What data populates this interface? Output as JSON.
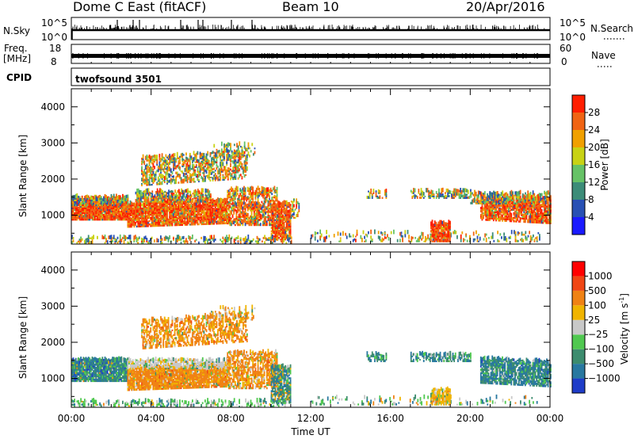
{
  "header": {
    "title": "Dome C East (fitACF)",
    "beam": "Beam 10",
    "date": "20/Apr/2016"
  },
  "top_panels": {
    "nsky": {
      "label": "N.Sky",
      "left_top": "10^5",
      "left_bottom": "10^0",
      "right_top": "10^5",
      "right_bottom": "10^0",
      "right_label": "N.Search"
    },
    "freq": {
      "label_line1": "Freq.",
      "label_line2": "[MHz]",
      "left_top": "18",
      "left_bottom": "8",
      "right_top": "60",
      "right_bottom": "0",
      "right_label": "Nave"
    },
    "cpid": {
      "label": "CPID",
      "value": "twofsound 3501"
    }
  },
  "chart_data": [
    {
      "type": "heatmap",
      "name": "power",
      "ylabel": "Slant Range [km]",
      "yticks": [
        "1000",
        "2000",
        "3000",
        "4000"
      ],
      "ylim": [
        200,
        4500
      ],
      "xlim": [
        0,
        24
      ],
      "colorbar_label": "Power [dB]",
      "colorbar_ticks": [
        "4",
        "8",
        "12",
        "16",
        "20",
        "24",
        "28"
      ],
      "colors": [
        "#1a1aff",
        "#2850b4",
        "#3c8c78",
        "#66c266",
        "#c8d214",
        "#f0a000",
        "#f06414",
        "#ff1e00"
      ]
    },
    {
      "type": "heatmap",
      "name": "velocity",
      "ylabel": "Slant Range [km]",
      "yticks": [
        "1000",
        "2000",
        "3000",
        "4000"
      ],
      "ylim": [
        200,
        4500
      ],
      "xlim": [
        0,
        24
      ],
      "xticks": [
        "00:00",
        "04:00",
        "08:00",
        "12:00",
        "16:00",
        "20:00",
        "00:00"
      ],
      "xlabel": "Time UT",
      "colorbar_label": "Velocity [m s",
      "colorbar_label_sup": "-1",
      "colorbar_label_end": "]",
      "colorbar_ticks": [
        "1000",
        "500",
        "100",
        "25",
        "−25",
        "−100",
        "−500",
        "−1000"
      ],
      "colors": [
        "#1e3cc8",
        "#2878a0",
        "#3c8c6e",
        "#50c850",
        "#c8c8c8",
        "#f0b400",
        "#f08214",
        "#f04614",
        "#ff0000"
      ]
    }
  ]
}
